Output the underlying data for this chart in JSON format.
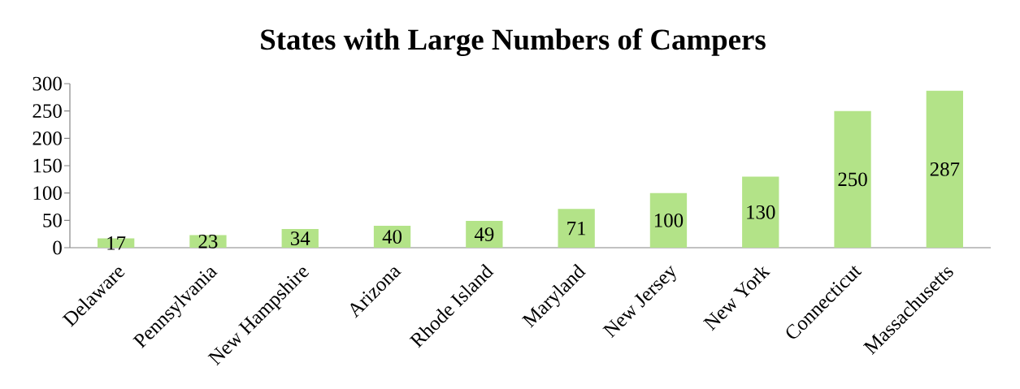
{
  "chart_data": {
    "type": "bar",
    "title": "States with Large Numbers of Campers",
    "categories": [
      "Delaware",
      "Pennsylvania",
      "New Hampshire",
      "Arizona",
      "Rhode Island",
      "Maryland",
      "New Jersey",
      "New York",
      "Connecticut",
      "Massachusetts"
    ],
    "values": [
      17,
      23,
      34,
      40,
      49,
      71,
      100,
      130,
      250,
      287
    ],
    "color": "#b3e388",
    "ylim": [
      0,
      300
    ],
    "yticks": [
      0,
      50,
      100,
      150,
      200,
      250,
      300
    ],
    "data_labels": true
  }
}
